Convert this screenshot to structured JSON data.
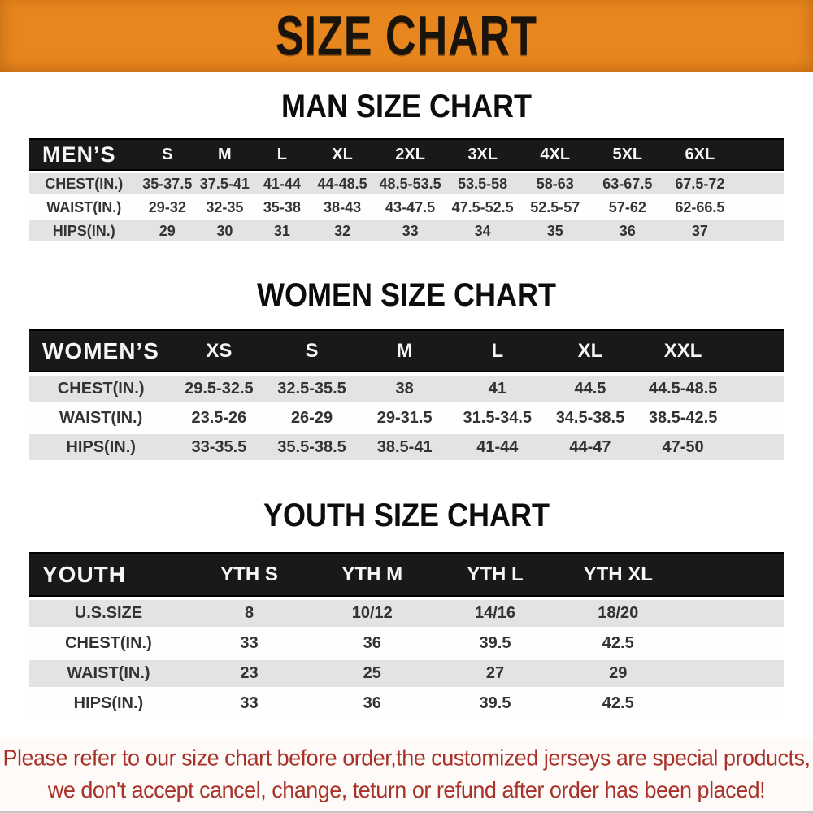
{
  "banner": {
    "title": "SIZE CHART"
  },
  "colors": {
    "banner_orange": "#E8861E",
    "header_black": "#191919",
    "row_stripe_gray": "#E3E3E3",
    "disclaimer_red": "#A8322A"
  },
  "sections": [
    {
      "heading": "MAN SIZE CHART",
      "label": "MEN’S",
      "columns": [
        "S",
        "M",
        "L",
        "XL",
        "2XL",
        "3XL",
        "4XL",
        "5XL",
        "6XL"
      ],
      "rows": [
        {
          "label": "CHEST(IN.)",
          "values": [
            "35-37.5",
            "37.5-41",
            "41-44",
            "44-48.5",
            "48.5-53.5",
            "53.5-58",
            "58-63",
            "63-67.5",
            "67.5-72"
          ]
        },
        {
          "label": "WAIST(IN.)",
          "values": [
            "29-32",
            "32-35",
            "35-38",
            "38-43",
            "43-47.5",
            "47.5-52.5",
            "52.5-57",
            "57-62",
            "62-66.5"
          ]
        },
        {
          "label": "HIPS(IN.)",
          "values": [
            "29",
            "30",
            "31",
            "32",
            "33",
            "34",
            "35",
            "36",
            "37"
          ]
        }
      ]
    },
    {
      "heading": "WOMEN SIZE CHART",
      "label": "WOMEN’S",
      "columns": [
        "XS",
        "S",
        "M",
        "L",
        "XL",
        "XXL"
      ],
      "rows": [
        {
          "label": "CHEST(IN.)",
          "values": [
            "29.5-32.5",
            "32.5-35.5",
            "38",
            "41",
            "44.5",
            "44.5-48.5"
          ]
        },
        {
          "label": "WAIST(IN.)",
          "values": [
            "23.5-26",
            "26-29",
            "29-31.5",
            "31.5-34.5",
            "34.5-38.5",
            "38.5-42.5"
          ]
        },
        {
          "label": "HIPS(IN.)",
          "values": [
            "33-35.5",
            "35.5-38.5",
            "38.5-41",
            "41-44",
            "44-47",
            "47-50"
          ]
        }
      ]
    },
    {
      "heading": "YOUTH SIZE CHART",
      "label": "YOUTH",
      "columns": [
        "YTH S",
        "YTH M",
        "YTH L",
        "YTH XL"
      ],
      "rows": [
        {
          "label": "U.S.SIZE",
          "values": [
            "8",
            "10/12",
            "14/16",
            "18/20"
          ]
        },
        {
          "label": "CHEST(IN.)",
          "values": [
            "33",
            "36",
            "39.5",
            "42.5"
          ]
        },
        {
          "label": "WAIST(IN.)",
          "values": [
            "23",
            "25",
            "27",
            "29"
          ]
        },
        {
          "label": "HIPS(IN.)",
          "values": [
            "33",
            "36",
            "39.5",
            "42.5"
          ]
        }
      ]
    }
  ],
  "disclaimer": {
    "line1": "Please refer to our size chart before order,the customized jerseys are special products,",
    "line2": "we don't accept cancel, change, teturn or refund after order has been placed!"
  }
}
